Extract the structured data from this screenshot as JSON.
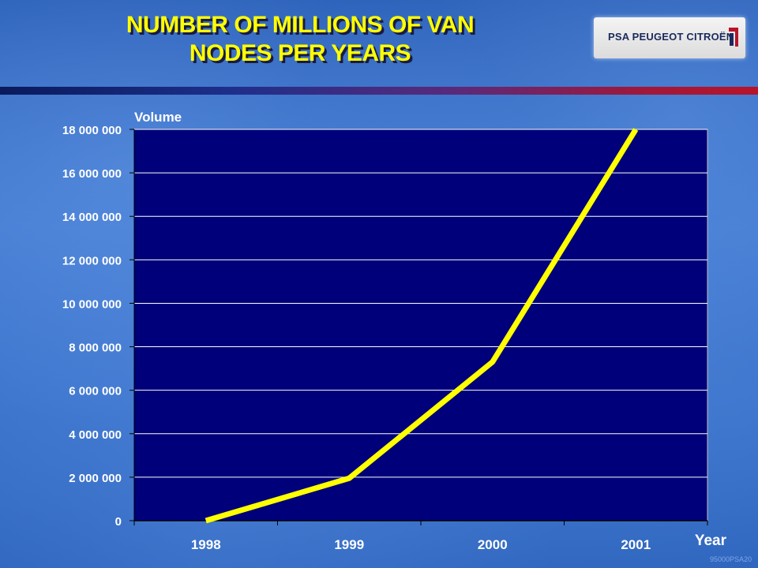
{
  "title": {
    "line1": "NUMBER OF MILLIONS OF VAN",
    "line2": "NODES PER YEARS"
  },
  "logo": {
    "text": "PSA PEUGEOT CITROËN"
  },
  "footer_code": "95000PSA20",
  "colors": {
    "plot_bg": "#00007a",
    "line": "#ffff00",
    "title": "#ffff00",
    "grid": "#ffffff"
  },
  "chart_data": {
    "type": "line",
    "title": "NUMBER OF MILLIONS OF VAN NODES PER YEARS",
    "xlabel": "Year",
    "ylabel": "Volume",
    "categories": [
      "1998",
      "1999",
      "2000",
      "2001"
    ],
    "series": [
      {
        "values": [
          0,
          1950000,
          7300000,
          18000000
        ]
      }
    ],
    "ylim": [
      0,
      18000000
    ],
    "yticks": [
      0,
      2000000,
      4000000,
      6000000,
      8000000,
      10000000,
      12000000,
      14000000,
      16000000,
      18000000
    ],
    "ytick_labels": [
      "0",
      "2 000 000",
      "4 000 000",
      "6 000 000",
      "8 000 000",
      "10 000 000",
      "12 000 000",
      "14 000 000",
      "16 000 000",
      "18 000 000"
    ],
    "grid": true,
    "legend": "none"
  }
}
